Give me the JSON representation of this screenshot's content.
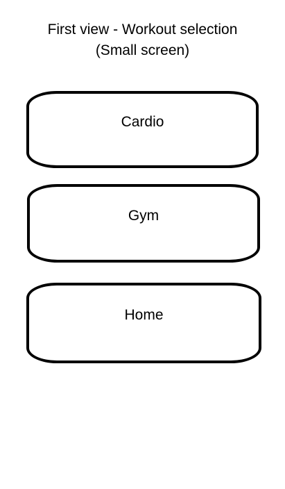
{
  "header": {
    "title_line1": "First view - Workout selection",
    "title_line2": "(Small screen)"
  },
  "workouts": [
    {
      "label": "Cardio"
    },
    {
      "label": "Gym"
    },
    {
      "label": "Home"
    }
  ]
}
